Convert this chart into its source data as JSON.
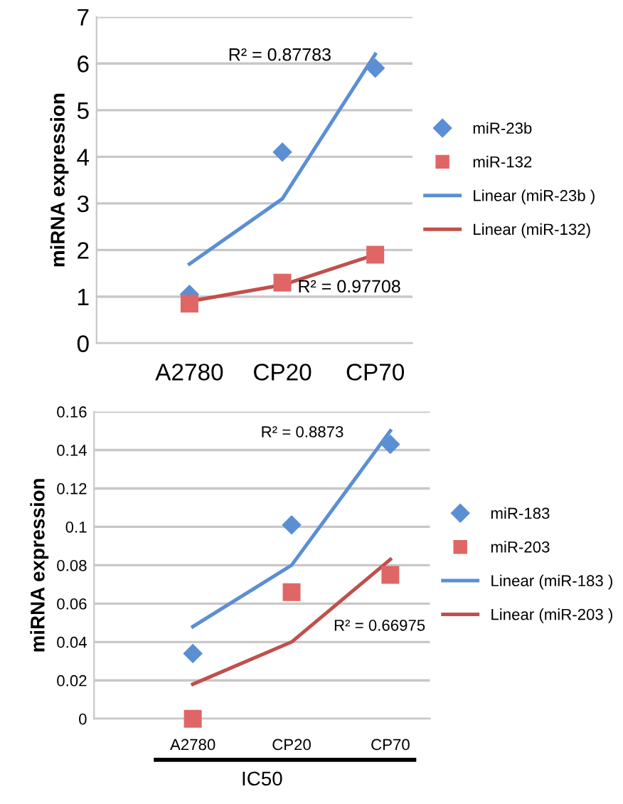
{
  "chart_data": [
    {
      "type": "scatter",
      "ylabel": "miRNA expression",
      "categories": [
        "A2780",
        "CP20",
        "CP70"
      ],
      "ylim": [
        0,
        7
      ],
      "yticks": [
        0,
        1,
        2,
        3,
        4,
        5,
        6,
        7
      ],
      "grid": "y",
      "legend": "right",
      "series": [
        {
          "name": "miR-23b",
          "color": "#5b8fd4",
          "marker": "diamond",
          "values": [
            1.05,
            4.1,
            5.9
          ]
        },
        {
          "name": "miR-132",
          "color": "#e06666",
          "marker": "square",
          "values": [
            0.85,
            1.3,
            1.9
          ]
        },
        {
          "name": "Linear (miR-23b )",
          "type": "line",
          "color": "#5b8fd4",
          "values": [
            1.7,
            3.1,
            6.2
          ]
        },
        {
          "name": "Linear (miR-132)",
          "type": "line",
          "color": "#c0504d",
          "values": [
            0.9,
            1.25,
            1.9
          ]
        }
      ],
      "annotations": [
        "R² = 0.87783",
        "R² = 0.97708"
      ]
    },
    {
      "type": "scatter",
      "xlabel": "IC50",
      "ylabel": "miRNA expression",
      "categories": [
        "A2780",
        "CP20",
        "CP70"
      ],
      "ylim": [
        0,
        0.16
      ],
      "yticks": [
        0,
        0.02,
        0.04,
        0.06,
        0.08,
        0.1,
        0.12,
        0.14,
        0.16
      ],
      "grid": "y",
      "legend": "right",
      "series": [
        {
          "name": "miR-183",
          "color": "#5b8fd4",
          "marker": "diamond",
          "values": [
            0.034,
            0.101,
            0.143
          ]
        },
        {
          "name": "miR-203",
          "color": "#e06666",
          "marker": "square",
          "values": [
            0.0,
            0.066,
            0.075
          ]
        },
        {
          "name": "Linear (miR-183 )",
          "type": "line",
          "color": "#5b8fd4",
          "values": [
            0.048,
            0.08,
            0.15
          ]
        },
        {
          "name": "Linear (miR-203 )",
          "type": "line",
          "color": "#c0504d",
          "values": [
            0.018,
            0.04,
            0.083
          ]
        }
      ],
      "annotations": [
        "R² = 0.8873",
        "R² = 0.66975"
      ]
    }
  ]
}
